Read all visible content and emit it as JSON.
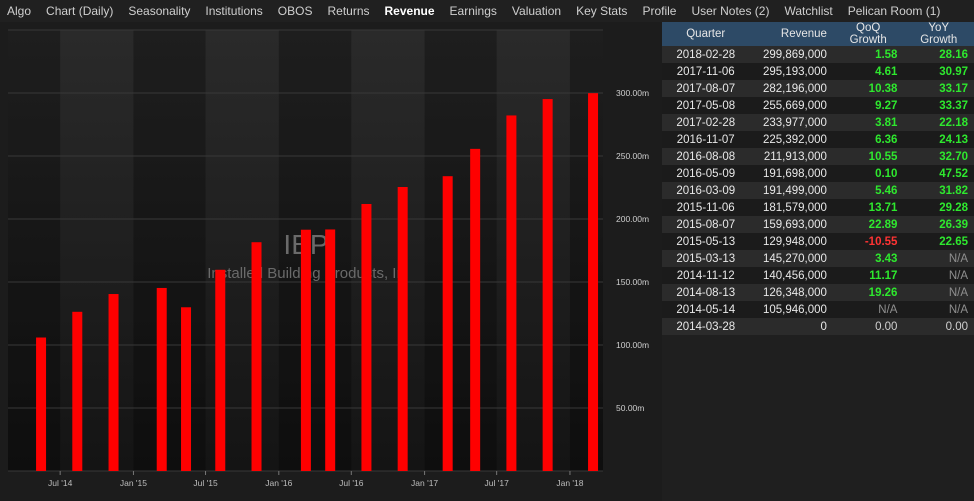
{
  "nav": {
    "tabs": [
      "Algo",
      "Chart (Daily)",
      "Seasonality",
      "Institutions",
      "OBOS",
      "Returns",
      "Revenue",
      "Earnings",
      "Valuation",
      "Key Stats",
      "Profile",
      "User Notes (2)",
      "Watchlist",
      "Pelican Room (1)"
    ],
    "active": "Revenue"
  },
  "chart_data": {
    "type": "bar",
    "watermark_symbol": "IBP",
    "watermark_name": "Installed Building Products, In",
    "categories": [
      "2014-03-28",
      "2014-05-14",
      "2014-08-13",
      "2014-11-12",
      "2015-03-13",
      "2015-05-13",
      "2015-08-07",
      "2015-11-06",
      "2016-03-09",
      "2016-05-09",
      "2016-08-08",
      "2016-11-07",
      "2017-02-28",
      "2017-05-08",
      "2017-08-07",
      "2017-11-06",
      "2018-02-28"
    ],
    "values": [
      0,
      105946000,
      126348000,
      140456000,
      145270000,
      129948000,
      159693000,
      181579000,
      191499000,
      191698000,
      211913000,
      225392000,
      233977000,
      255669000,
      282196000,
      295193000,
      299869000
    ],
    "y_ticks": [
      "50.00m",
      "100.00m",
      "150.00m",
      "200.00m",
      "250.00m",
      "300.00m"
    ],
    "x_ticks": [
      "Jul '14",
      "Jan '15",
      "Jul '15",
      "Jan '16",
      "Jul '16",
      "Jan '17",
      "Jul '17",
      "Jan '18"
    ],
    "ylim": [
      0,
      350000000
    ],
    "bar_color": "#ff0000"
  },
  "table": {
    "headers": [
      "Quarter",
      "Revenue",
      "QoQ Growth",
      "YoY Growth"
    ],
    "rows": [
      [
        "2018-02-28",
        "299,869,000",
        "1.58",
        "28.16"
      ],
      [
        "2017-11-06",
        "295,193,000",
        "4.61",
        "30.97"
      ],
      [
        "2017-08-07",
        "282,196,000",
        "10.38",
        "33.17"
      ],
      [
        "2017-05-08",
        "255,669,000",
        "9.27",
        "33.37"
      ],
      [
        "2017-02-28",
        "233,977,000",
        "3.81",
        "22.18"
      ],
      [
        "2016-11-07",
        "225,392,000",
        "6.36",
        "24.13"
      ],
      [
        "2016-08-08",
        "211,913,000",
        "10.55",
        "32.70"
      ],
      [
        "2016-05-09",
        "191,698,000",
        "0.10",
        "47.52"
      ],
      [
        "2016-03-09",
        "191,499,000",
        "5.46",
        "31.82"
      ],
      [
        "2015-11-06",
        "181,579,000",
        "13.71",
        "29.28"
      ],
      [
        "2015-08-07",
        "159,693,000",
        "22.89",
        "26.39"
      ],
      [
        "2015-05-13",
        "129,948,000",
        "-10.55",
        "22.65"
      ],
      [
        "2015-03-13",
        "145,270,000",
        "3.43",
        "N/A"
      ],
      [
        "2014-11-12",
        "140,456,000",
        "11.17",
        "N/A"
      ],
      [
        "2014-08-13",
        "126,348,000",
        "19.26",
        "N/A"
      ],
      [
        "2014-05-14",
        "105,946,000",
        "N/A",
        "N/A"
      ],
      [
        "2014-03-28",
        "0",
        "0.00",
        "0.00"
      ]
    ]
  }
}
